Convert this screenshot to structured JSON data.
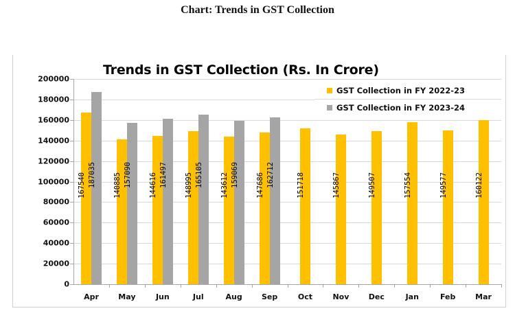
{
  "page": {
    "heading": "Chart: Trends in GST Collection"
  },
  "chart_data": {
    "type": "bar",
    "title": "Trends in GST Collection (Rs. In Crore)",
    "xlabel": "",
    "ylabel": "",
    "ylim": [
      0,
      200000
    ],
    "yticks": [
      "0",
      "20000",
      "40000",
      "60000",
      "80000",
      "100000",
      "120000",
      "140000",
      "160000",
      "180000",
      "200000"
    ],
    "grid": true,
    "legend_position": "top-right",
    "categories": [
      "Apr",
      "May",
      "Jun",
      "Jul",
      "Aug",
      "Sep",
      "Oct",
      "Nov",
      "Dec",
      "Jan",
      "Feb",
      "Mar"
    ],
    "series": [
      {
        "name": "GST Collection in FY 2022-23",
        "color": "#ffc000",
        "values": [
          167540,
          140885,
          144616,
          148995,
          143612,
          147686,
          151718,
          145867,
          149507,
          157554,
          149577,
          160122
        ]
      },
      {
        "name": "GST Collection in FY 2023-24",
        "color": "#a5a5a5",
        "values": [
          187035,
          157090,
          161497,
          165105,
          159069,
          162712,
          null,
          null,
          null,
          null,
          null,
          null
        ]
      }
    ],
    "data_labels": "inside-bar, rotated vertical"
  }
}
